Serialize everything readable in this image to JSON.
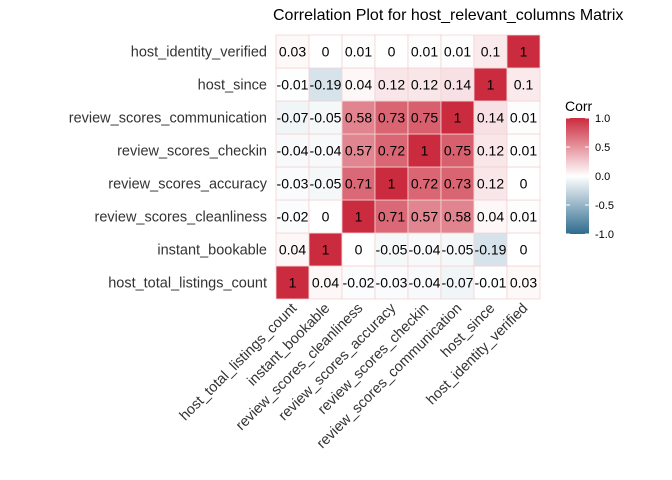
{
  "chart_data": {
    "type": "heatmap",
    "title": "Correlation Plot for host_relevant_columns Matrix",
    "x_labels": [
      "host_total_listings_count",
      "instant_bookable",
      "review_scores_cleanliness",
      "review_scores_accuracy",
      "review_scores_checkin",
      "review_scores_communication",
      "host_since",
      "host_identity_verified"
    ],
    "y_labels_bottom_to_top": [
      "host_total_listings_count",
      "instant_bookable",
      "review_scores_cleanliness",
      "review_scores_accuracy",
      "review_scores_checkin",
      "review_scores_communication",
      "host_since",
      "host_identity_verified"
    ],
    "values_bottom_to_top": [
      [
        1,
        0.04,
        -0.02,
        -0.03,
        -0.04,
        -0.07,
        -0.01,
        0.03
      ],
      [
        0.04,
        1,
        0,
        -0.05,
        -0.04,
        -0.05,
        -0.19,
        0
      ],
      [
        -0.02,
        0,
        1,
        0.71,
        0.57,
        0.58,
        0.04,
        0.01
      ],
      [
        -0.03,
        -0.05,
        0.71,
        1,
        0.72,
        0.73,
        0.12,
        0
      ],
      [
        -0.04,
        -0.04,
        0.57,
        0.72,
        1,
        0.75,
        0.12,
        0.01
      ],
      [
        -0.07,
        -0.05,
        0.58,
        0.73,
        0.75,
        1,
        0.14,
        0.01
      ],
      [
        -0.01,
        -0.19,
        0.04,
        0.12,
        0.12,
        0.14,
        1,
        0.1
      ],
      [
        0.03,
        0,
        0.01,
        0,
        0.01,
        0.01,
        0.1,
        1
      ]
    ],
    "legend": {
      "title": "Corr",
      "ticks": [
        "1.0",
        "0.5",
        "0.0",
        "-0.5",
        "-1.0"
      ],
      "tick_values": [
        1,
        0.5,
        0,
        -0.5,
        -1
      ],
      "range": [
        -1,
        1
      ]
    },
    "colors": {
      "high": "#CB2B3E",
      "mid": "#FFFFFF",
      "low": "#2E6B8E",
      "grid": "#F3D4D4"
    }
  }
}
